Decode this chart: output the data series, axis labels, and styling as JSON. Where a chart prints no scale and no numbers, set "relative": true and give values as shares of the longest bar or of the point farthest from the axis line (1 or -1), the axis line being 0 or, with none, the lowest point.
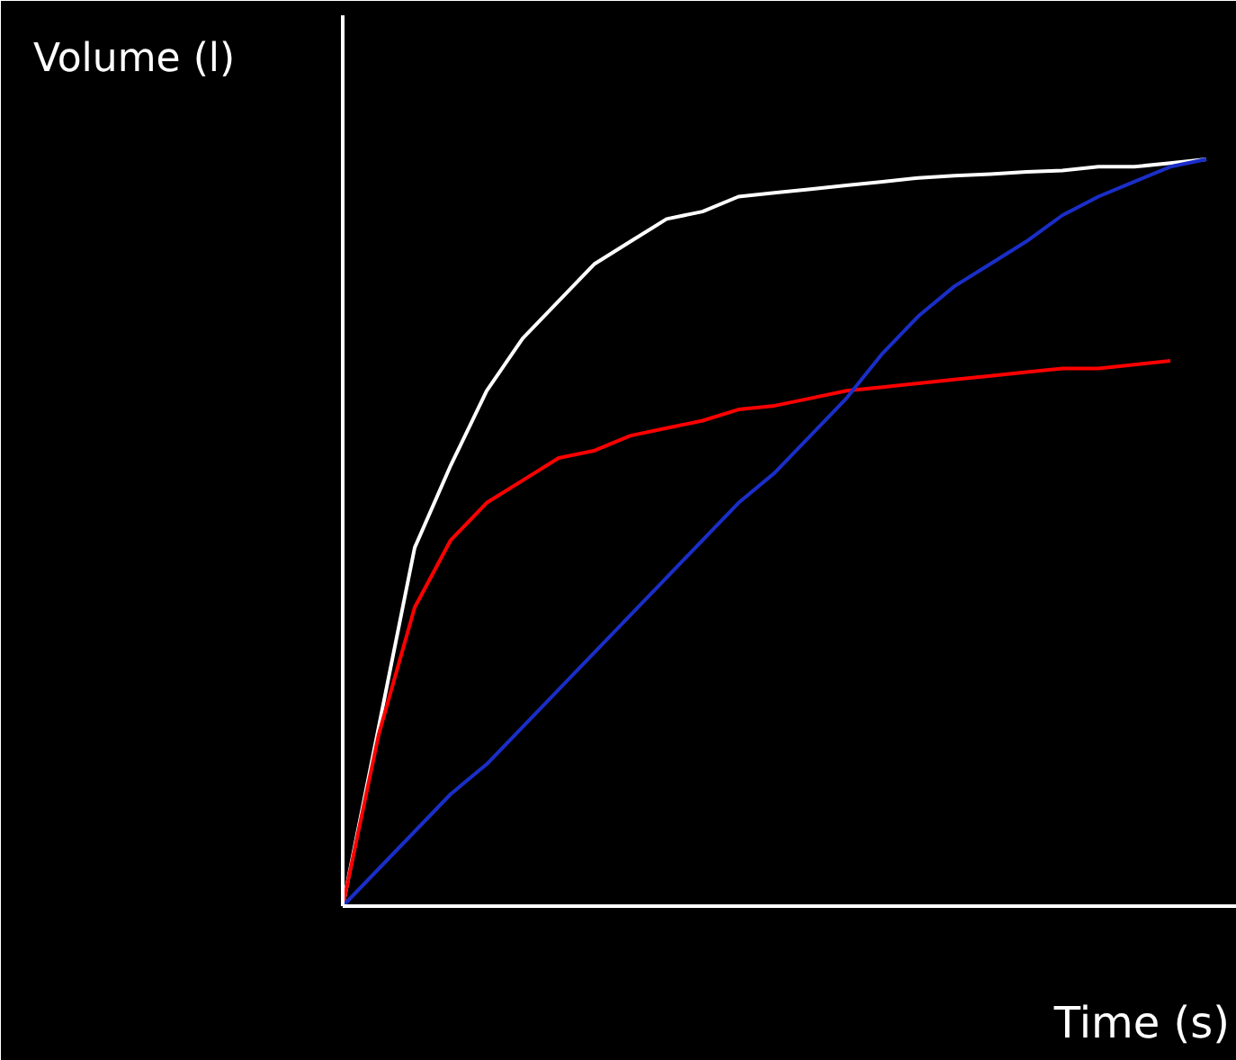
{
  "chart_data": {
    "type": "line",
    "relative": true,
    "xlabel": "Time (s)",
    "ylabel": "Volume (l)",
    "categories": [
      null,
      null,
      null,
      null,
      null,
      null,
      null,
      null,
      null,
      null,
      null,
      null,
      null,
      null,
      null,
      null,
      null,
      null,
      null,
      null,
      null,
      null,
      null,
      null,
      null
    ],
    "series": [
      {
        "color": "#ffffff",
        "values": [
          0,
          0.24,
          0.48,
          0.59,
          0.69,
          0.76,
          0.81,
          0.86,
          0.89,
          0.92,
          0.93,
          0.95,
          0.955,
          0.96,
          0.965,
          0.97,
          0.975,
          0.978,
          0.98,
          0.983,
          0.985,
          0.99,
          0.99,
          0.995,
          1
        ]
      },
      {
        "color": "#ff0000",
        "values": [
          0,
          0.23,
          0.4,
          0.49,
          0.54,
          0.57,
          0.6,
          0.61,
          0.63,
          0.64,
          0.65,
          0.665,
          0.67,
          0.68,
          0.69,
          0.695,
          0.7,
          0.705,
          0.71,
          0.715,
          0.72,
          0.72,
          0.725,
          0.73,
          null
        ]
      },
      {
        "color": "#1a2ec8",
        "values": [
          0,
          0.05,
          0.1,
          0.15,
          0.19,
          0.24,
          0.29,
          0.34,
          0.39,
          0.44,
          0.49,
          0.54,
          0.58,
          0.63,
          0.68,
          0.74,
          0.79,
          0.83,
          0.86,
          0.89,
          0.925,
          0.95,
          0.97,
          0.99,
          1
        ]
      }
    ]
  }
}
